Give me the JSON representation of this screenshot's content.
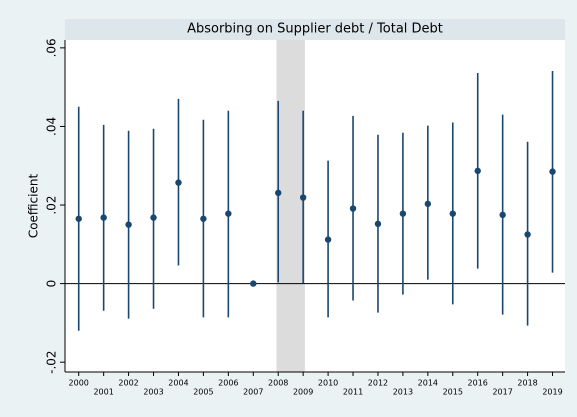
{
  "chart_data": {
    "type": "coefplot",
    "title": "Absorbing on Supplier debt / Total Debt",
    "y_label": "Coefficient",
    "x": [
      2000,
      2001,
      2002,
      2003,
      2004,
      2005,
      2006,
      2007,
      2008,
      2009,
      2010,
      2011,
      2012,
      2013,
      2014,
      2015,
      2016,
      2017,
      2018,
      2019
    ],
    "series": [
      {
        "name": "estimate",
        "color": "#1a476f",
        "values": [
          0.0165,
          0.0168,
          0.015,
          0.0168,
          0.0257,
          0.0165,
          0.0178,
          0,
          0.0231,
          0.0219,
          0.0112,
          0.0191,
          0.0152,
          0.0178,
          0.0203,
          0.0178,
          0.0287,
          0.0175,
          0.0125,
          0.0285
        ],
        "lower": [
          -0.012,
          -0.0069,
          -0.0089,
          -0.0064,
          0.0046,
          -0.0086,
          -0.0086,
          null,
          0.0003,
          0,
          -0.0086,
          -0.0043,
          -0.0074,
          -0.0028,
          0.001,
          -0.0053,
          0.0038,
          -0.0079,
          -0.0107,
          0.0028
        ],
        "upper": [
          0.045,
          0.0404,
          0.0389,
          0.0394,
          0.047,
          0.0417,
          0.044,
          null,
          0.0465,
          0.044,
          0.0313,
          0.0427,
          0.0379,
          0.0384,
          0.0402,
          0.041,
          0.0536,
          0.043,
          0.0361,
          0.0541
        ]
      }
    ],
    "shaded_region": [
      2007.93,
      2009.07
    ],
    "shade_color": "#dcdcdc",
    "xlim": [
      1999.45,
      2019.5
    ],
    "xticks": [
      2000,
      2001,
      2002,
      2003,
      2004,
      2005,
      2006,
      2007,
      2008,
      2009,
      2010,
      2011,
      2012,
      2013,
      2014,
      2015,
      2016,
      2017,
      2018,
      2019
    ],
    "ylim": [
      -0.0225,
      0.062
    ],
    "yticks": [
      {
        "value": -0.02,
        "label": "-.02"
      },
      0,
      {
        "value": 0.02,
        "label": ".02"
      },
      {
        "value": 0.04,
        "label": ".04"
      },
      {
        "value": 0.06,
        "label": ".06"
      }
    ],
    "reference_line": 0
  }
}
